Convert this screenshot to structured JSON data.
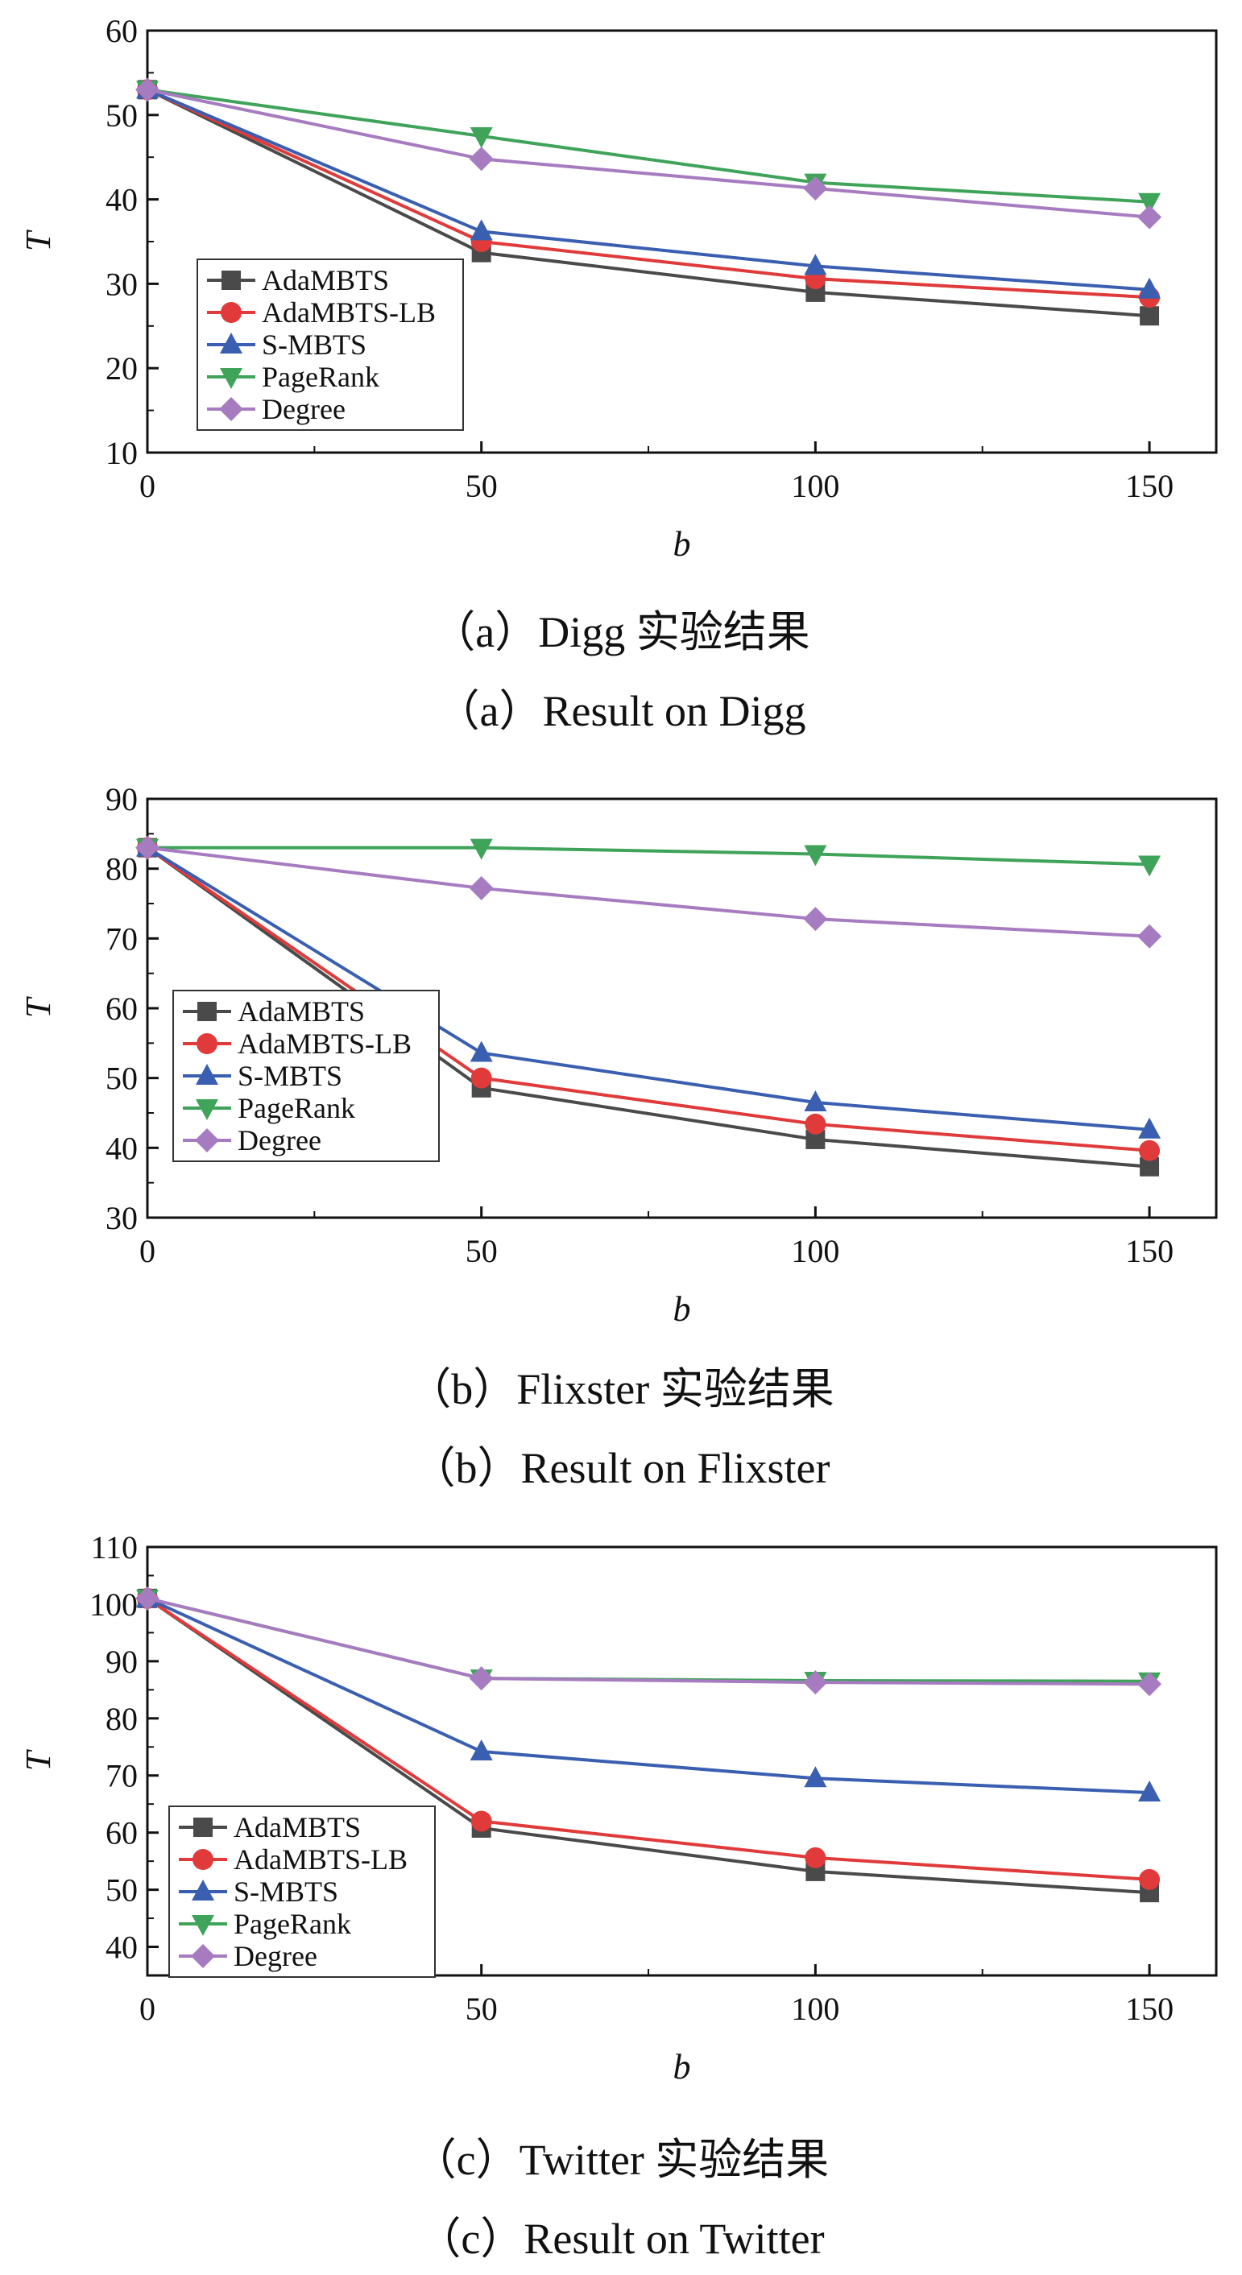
{
  "colors": {
    "AdaMBTS": "#4a4a4a",
    "AdaMBTS-LB": "#e03a3a",
    "S-MBTS": "#3a5fb0",
    "PageRank": "#3fa35a",
    "Degree": "#a77bc0"
  },
  "chart_data": [
    {
      "type": "line",
      "xlabel": "b",
      "ylabel": "T",
      "x": [
        0,
        50,
        100,
        150
      ],
      "xticks": [
        0,
        50,
        100,
        150
      ],
      "yticks": [
        10,
        20,
        30,
        40,
        50,
        60
      ],
      "ylim": [
        10,
        60
      ],
      "xlim": [
        0,
        160
      ],
      "grid": false,
      "legend": "lower-left",
      "caption_cn": "（a）Digg 实验结果",
      "caption_en": "（a）Result on Digg",
      "series": [
        {
          "name": "AdaMBTS",
          "marker": "square",
          "values": [
            53,
            33.7,
            29,
            26.2
          ]
        },
        {
          "name": "AdaMBTS-LB",
          "marker": "circle",
          "values": [
            53,
            35,
            30.6,
            28.4
          ]
        },
        {
          "name": "S-MBTS",
          "marker": "triangle-up",
          "values": [
            53,
            36.2,
            32.1,
            29.3
          ]
        },
        {
          "name": "PageRank",
          "marker": "triangle-down",
          "values": [
            53,
            47.5,
            42,
            39.7
          ]
        },
        {
          "name": "Degree",
          "marker": "diamond",
          "values": [
            53,
            44.8,
            41.3,
            37.9
          ]
        }
      ]
    },
    {
      "type": "line",
      "xlabel": "b",
      "ylabel": "T",
      "x": [
        0,
        50,
        100,
        150
      ],
      "xticks": [
        0,
        50,
        100,
        150
      ],
      "yticks": [
        30,
        40,
        50,
        60,
        70,
        80,
        90
      ],
      "ylim": [
        30,
        90
      ],
      "xlim": [
        0,
        160
      ],
      "grid": false,
      "legend": "lower-left",
      "caption_cn": "（b）Flixster 实验结果",
      "caption_en": "（b）Result on Flixster",
      "series": [
        {
          "name": "AdaMBTS",
          "marker": "square",
          "values": [
            83,
            48.6,
            41.2,
            37.3
          ]
        },
        {
          "name": "AdaMBTS-LB",
          "marker": "circle",
          "values": [
            83,
            50,
            43.4,
            39.6
          ]
        },
        {
          "name": "S-MBTS",
          "marker": "triangle-up",
          "values": [
            83,
            53.6,
            46.5,
            42.6
          ]
        },
        {
          "name": "PageRank",
          "marker": "triangle-down",
          "values": [
            83,
            83,
            82.1,
            80.6
          ]
        },
        {
          "name": "Degree",
          "marker": "diamond",
          "values": [
            83,
            77.2,
            72.8,
            70.3
          ]
        }
      ]
    },
    {
      "type": "line",
      "xlabel": "b",
      "ylabel": "T",
      "x": [
        0,
        50,
        100,
        150
      ],
      "xticks": [
        0,
        50,
        100,
        150
      ],
      "yticks": [
        40,
        50,
        60,
        70,
        80,
        90,
        100,
        110
      ],
      "ylim": [
        35,
        110
      ],
      "xlim": [
        0,
        160
      ],
      "grid": false,
      "legend": "lower-left",
      "caption_cn": "（c）Twitter 实验结果",
      "caption_en": "（c）Result on Twitter",
      "series": [
        {
          "name": "AdaMBTS",
          "marker": "square",
          "values": [
            101,
            60.8,
            53.2,
            49.5
          ]
        },
        {
          "name": "AdaMBTS-LB",
          "marker": "circle",
          "values": [
            101,
            62,
            55.6,
            51.8
          ]
        },
        {
          "name": "S-MBTS",
          "marker": "triangle-up",
          "values": [
            101,
            74.2,
            69.5,
            67
          ]
        },
        {
          "name": "PageRank",
          "marker": "triangle-down",
          "values": [
            101,
            87,
            86.6,
            86.5
          ]
        },
        {
          "name": "Degree",
          "marker": "diamond",
          "values": [
            101,
            87,
            86.3,
            86
          ]
        }
      ]
    }
  ]
}
